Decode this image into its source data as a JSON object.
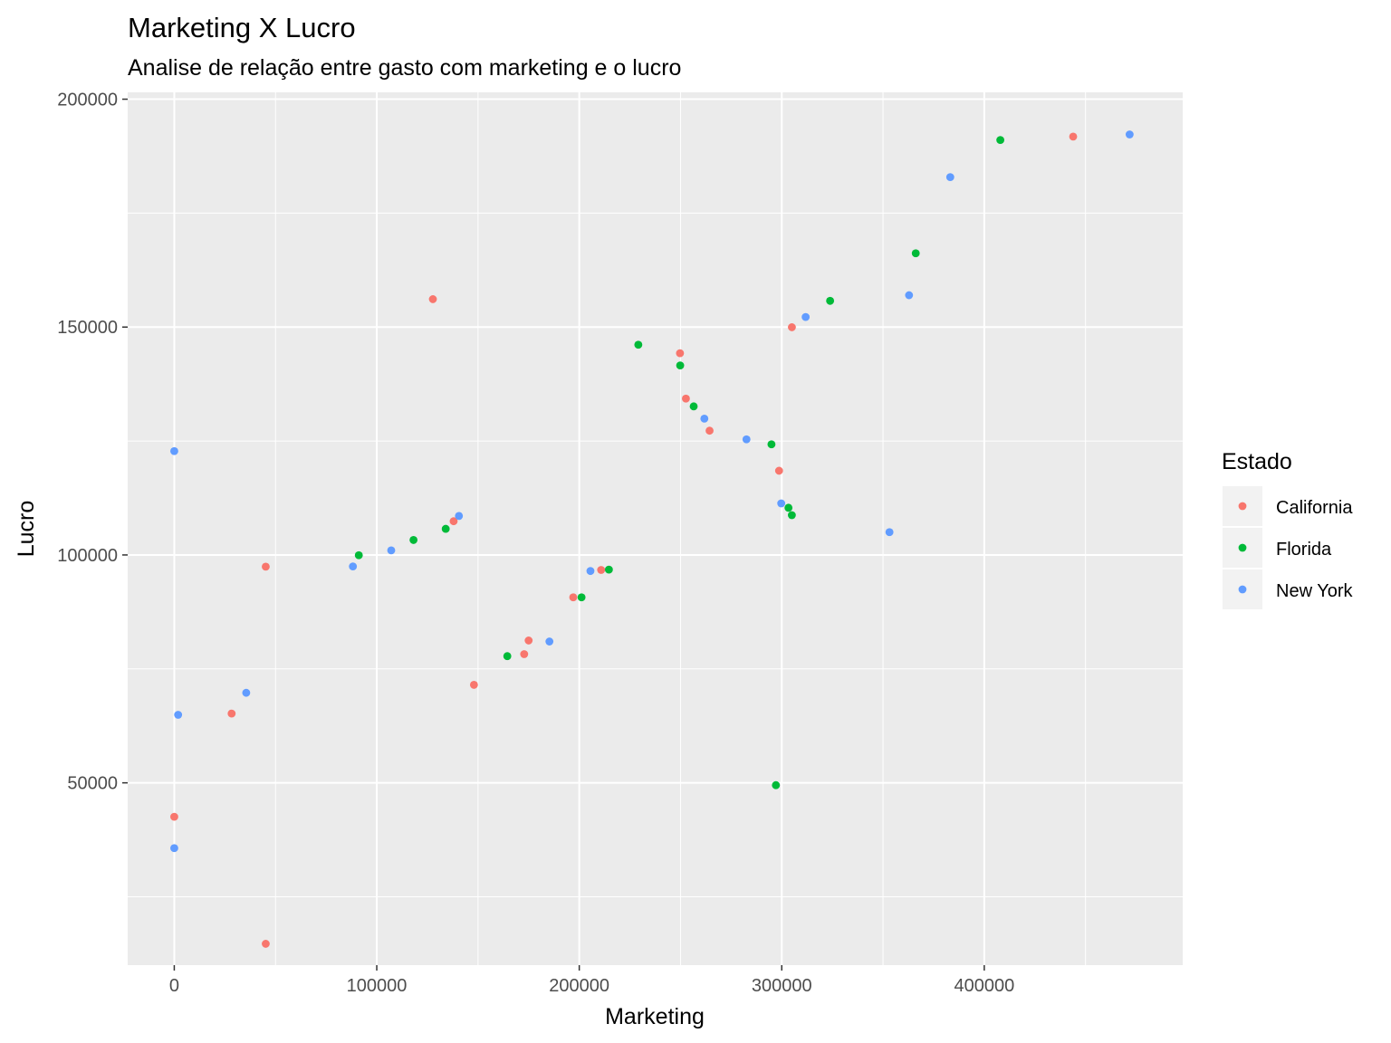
{
  "chart_data": {
    "type": "scatter",
    "title": "Marketing X Lucro",
    "subtitle": "Analise de relação entre gasto com marketing e o lucro",
    "xlabel": "Marketing",
    "ylabel": "Lucro",
    "xlim": [
      -23000,
      498000
    ],
    "ylim": [
      10000,
      201500
    ],
    "x_ticks": [
      0,
      100000,
      200000,
      300000,
      400000
    ],
    "y_ticks": [
      50000,
      100000,
      150000,
      200000
    ],
    "x_tick_labels": [
      "0",
      "100000",
      "200000",
      "300000",
      "400000"
    ],
    "y_tick_labels": [
      "50000",
      "100000",
      "150000",
      "200000"
    ],
    "grid": true,
    "legend": {
      "title": "Estado",
      "position": "right",
      "entries": [
        {
          "name": "California",
          "color": "#F8766D"
        },
        {
          "name": "Florida",
          "color": "#00BA38"
        },
        {
          "name": "New York",
          "color": "#619CFF"
        }
      ]
    },
    "series": [
      {
        "name": "California",
        "color": "#F8766D",
        "points": [
          {
            "x": 443898,
            "y": 191792
          },
          {
            "x": 127717,
            "y": 156123
          },
          {
            "x": 305000,
            "y": 149960
          },
          {
            "x": 249744,
            "y": 144259
          },
          {
            "x": 252665,
            "y": 134307
          },
          {
            "x": 264346,
            "y": 127266
          },
          {
            "x": 298664,
            "y": 118474
          },
          {
            "x": 137963,
            "y": 107404
          },
          {
            "x": 45173,
            "y": 97427
          },
          {
            "x": 210798,
            "y": 96712
          },
          {
            "x": 197029,
            "y": 90708
          },
          {
            "x": 174999,
            "y": 81229
          },
          {
            "x": 172795,
            "y": 78240
          },
          {
            "x": 148001,
            "y": 71498
          },
          {
            "x": 28334,
            "y": 65200
          },
          {
            "x": 0,
            "y": 42559
          },
          {
            "x": 45174,
            "y": 14681
          }
        ]
      },
      {
        "name": "Florida",
        "color": "#00BA38",
        "points": [
          {
            "x": 407934,
            "y": 191050
          },
          {
            "x": 366168,
            "y": 166188
          },
          {
            "x": 323876,
            "y": 155753
          },
          {
            "x": 229161,
            "y": 146122
          },
          {
            "x": 249839,
            "y": 141586
          },
          {
            "x": 256513,
            "y": 132602
          },
          {
            "x": 294920,
            "y": 124267
          },
          {
            "x": 303320,
            "y": 110353
          },
          {
            "x": 304981,
            "y": 108734
          },
          {
            "x": 91131,
            "y": 99938
          },
          {
            "x": 118148,
            "y": 103282
          },
          {
            "x": 134050,
            "y": 105734
          },
          {
            "x": 214634,
            "y": 96780
          },
          {
            "x": 201126,
            "y": 90708
          },
          {
            "x": 164470,
            "y": 77798
          },
          {
            "x": 297114,
            "y": 49490
          }
        ]
      },
      {
        "name": "New York",
        "color": "#619CFF",
        "points": [
          {
            "x": 471784,
            "y": 192262
          },
          {
            "x": 383200,
            "y": 182902
          },
          {
            "x": 362861,
            "y": 156991
          },
          {
            "x": 311800,
            "y": 152212
          },
          {
            "x": 261776,
            "y": 129917
          },
          {
            "x": 282574,
            "y": 125370
          },
          {
            "x": 299737,
            "y": 111313
          },
          {
            "x": 353184,
            "y": 105008
          },
          {
            "x": 140574,
            "y": 108552
          },
          {
            "x": 107138,
            "y": 101004
          },
          {
            "x": 88219,
            "y": 97484
          },
          {
            "x": 205517,
            "y": 96479
          },
          {
            "x": 185265,
            "y": 81006
          },
          {
            "x": 35534,
            "y": 69759
          },
          {
            "x": 1904,
            "y": 64927
          },
          {
            "x": 0,
            "y": 122777
          },
          {
            "x": 0,
            "y": 35673
          }
        ]
      }
    ]
  }
}
